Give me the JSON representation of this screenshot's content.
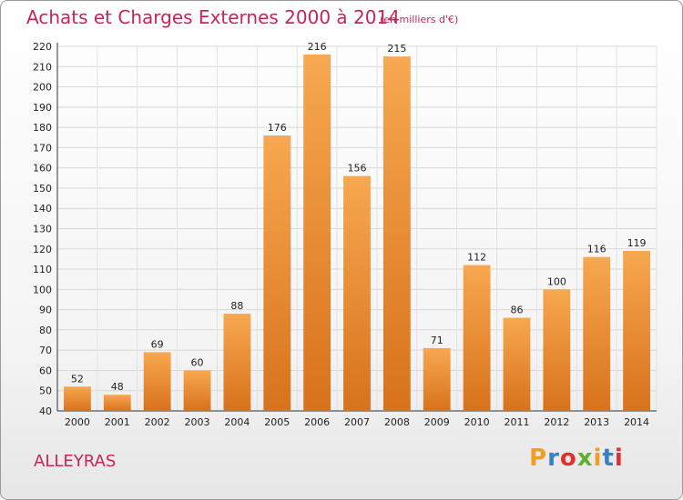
{
  "header": {
    "title": "Achats et Charges Externes 2000 à 2014",
    "subtitle": "(en milliers d'€)"
  },
  "footer": {
    "place": "ALLEYRAS",
    "logo": "Proxiti",
    "logo_colors": [
      "#f0a020",
      "#3a7fc4",
      "#e03030",
      "#5fb02f",
      "#f0a020",
      "#3a7fc4",
      "#e03030"
    ]
  },
  "colors": {
    "accent": "#c8245a",
    "bar_light": "#f7a850",
    "bar_dark": "#d8721c"
  },
  "chart_data": {
    "type": "bar",
    "title": "Achats et Charges Externes 2000 à 2014",
    "subtitle": "(en milliers d'€)",
    "categories": [
      "2000",
      "2001",
      "2002",
      "2003",
      "2004",
      "2005",
      "2006",
      "2007",
      "2008",
      "2009",
      "2010",
      "2011",
      "2012",
      "2013",
      "2014"
    ],
    "values": [
      52,
      48,
      69,
      60,
      88,
      176,
      216,
      156,
      215,
      71,
      112,
      86,
      100,
      116,
      119
    ],
    "ylim": [
      40,
      220
    ],
    "yticks": [
      40,
      50,
      60,
      70,
      80,
      90,
      100,
      110,
      120,
      130,
      140,
      150,
      160,
      170,
      180,
      190,
      200,
      210,
      220
    ],
    "grid": true,
    "legend": "none"
  }
}
